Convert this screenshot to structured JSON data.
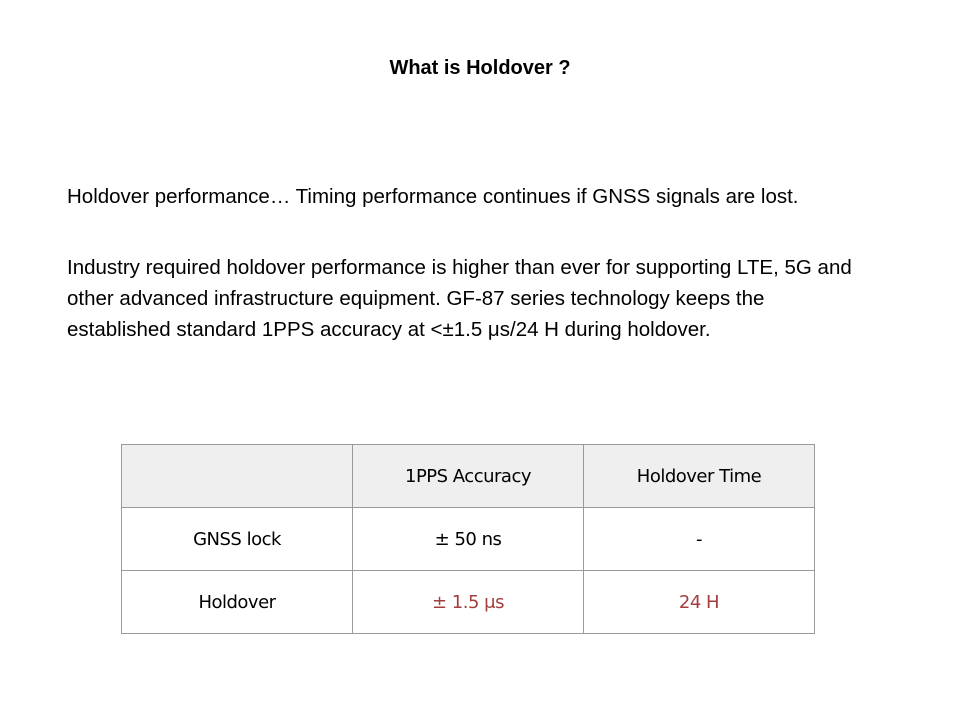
{
  "title": "What is Holdover ?",
  "paragraphs": [
    "Holdover performance… Timing performance continues if GNSS signals are lost.",
    "Industry required holdover performance is higher than ever for supporting LTE, 5G and other advanced infrastructure equipment. GF-87 series technology keeps the established standard 1PPS accuracy at <±1.5 μs/24 H during holdover."
  ],
  "table": {
    "headers": [
      "",
      "1PPS Accuracy",
      "Holdover Time"
    ],
    "rows": [
      [
        "GNSS lock",
        "± 50 ns",
        "-"
      ],
      [
        "Holdover",
        "± 1.5 μs",
        "24 H"
      ]
    ]
  },
  "colors": {
    "highlight": "#a33e3e",
    "header_bg": "#efefef",
    "border": "#9a9a9a"
  }
}
